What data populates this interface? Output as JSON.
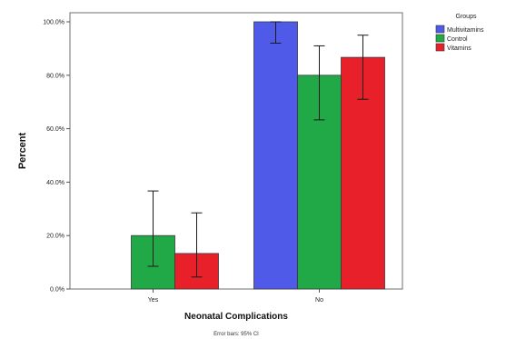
{
  "chart_data": {
    "type": "bar",
    "categories": [
      "Yes",
      "No"
    ],
    "series": [
      {
        "name": "Multivitamins",
        "color": "#4f5be8",
        "values": [
          0,
          100
        ],
        "ci": [
          [
            0,
            0
          ],
          [
            92,
            100
          ]
        ]
      },
      {
        "name": "Control",
        "color": "#22a947",
        "values": [
          20,
          80
        ],
        "ci": [
          [
            8.5,
            36.7
          ],
          [
            63.3,
            91
          ]
        ]
      },
      {
        "name": "Vitamins",
        "color": "#e8202a",
        "values": [
          13.3,
          86.7
        ],
        "ci": [
          [
            4.5,
            28.5
          ],
          [
            71,
            95
          ]
        ]
      }
    ],
    "ylim": [
      0,
      100
    ],
    "yticks": [
      "0.0%",
      "20.0%",
      "40.0%",
      "60.0%",
      "80.0%",
      "100.0%"
    ],
    "ytick_values": [
      0,
      20,
      40,
      60,
      80,
      100
    ],
    "xlabel": "Neonatal Complications",
    "ylabel": "Percent",
    "legend_title": "Groups",
    "legend_position": "top-right",
    "footnote": "Error bars: 95% CI",
    "grid": false
  }
}
